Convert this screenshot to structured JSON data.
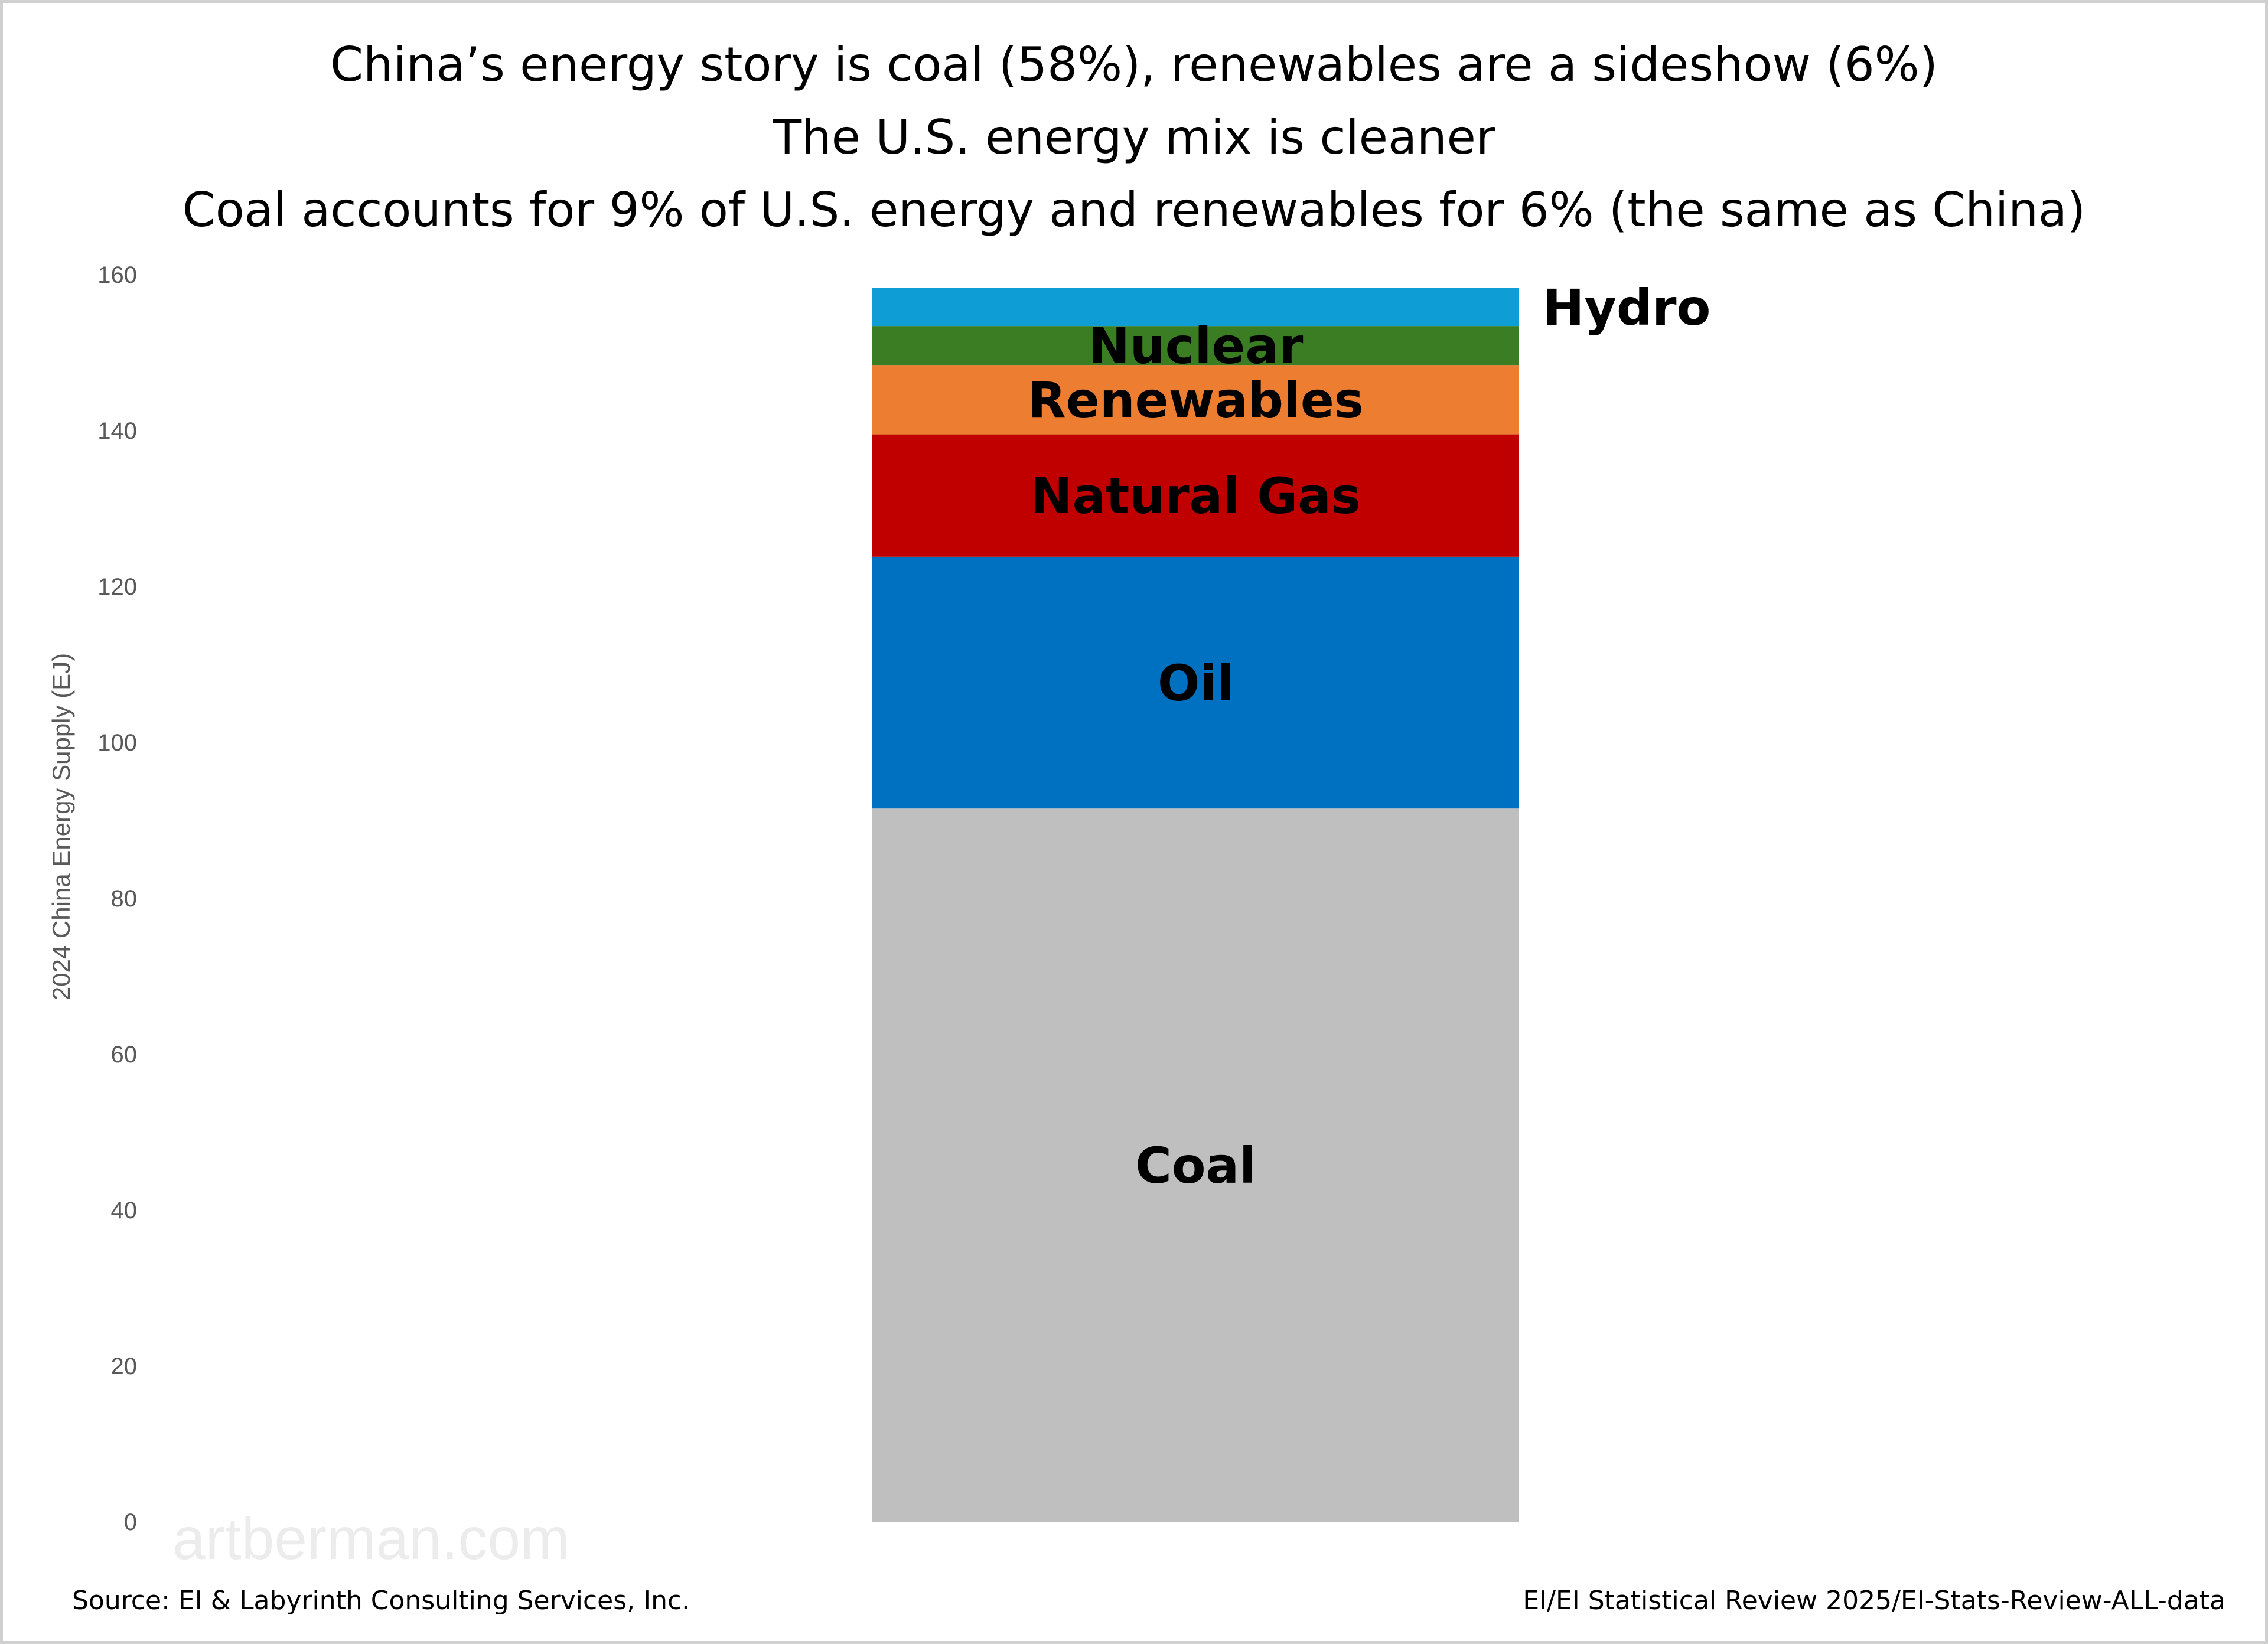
{
  "chart_data": {
    "type": "bar",
    "stacked": true,
    "title_lines": [
      "China’s energy story is coal (58%), renewables are a sideshow (6%)",
      "The U.S. energy mix is cleaner",
      "Coal accounts for 9% of U.S. energy and renewables for 6% (the same as China)"
    ],
    "ylabel": "2024 China Energy Supply (EJ)",
    "xlabel": "",
    "ylim": [
      0,
      160
    ],
    "yticks": [
      0,
      20,
      40,
      60,
      80,
      100,
      120,
      140,
      160
    ],
    "grid": false,
    "series": [
      {
        "name": "Coal",
        "value": 91.5,
        "color": "#bfbfbf"
      },
      {
        "name": "Oil",
        "value": 32.3,
        "color": "#0070c0"
      },
      {
        "name": "Natural Gas",
        "value": 15.7,
        "color": "#c00000"
      },
      {
        "name": "Renewables",
        "value": 8.9,
        "color": "#ed7d31"
      },
      {
        "name": "Nuclear",
        "value": 5.0,
        "color": "#3a7d22"
      },
      {
        "name": "Hydro",
        "value": 4.9,
        "color": "#0e9ed5"
      }
    ]
  },
  "watermark": "artberman.com",
  "footer": {
    "source": "Source:  EI & Labyrinth Consulting Services, Inc.",
    "reference": "EI/EI Statistical Review 2025/EI-Stats-Review-ALL-data"
  }
}
